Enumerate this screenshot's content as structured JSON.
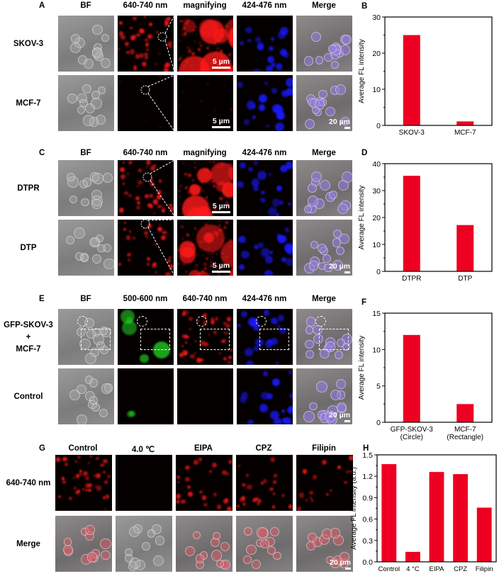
{
  "panels": {
    "A": {
      "letter": "A",
      "columns": [
        "BF",
        "640-740 nm",
        "magnifying",
        "424-476 nm",
        "Merge"
      ],
      "rows": [
        [
          "SKOV-3"
        ],
        [
          "MCF-7"
        ]
      ],
      "zoom_scale": "5 µm",
      "scale": "20 µm"
    },
    "C": {
      "letter": "C",
      "columns": [
        "BF",
        "640-740 nm",
        "magnifying",
        "424-476 nm",
        "Merge"
      ],
      "rows": [
        [
          "DTPR"
        ],
        [
          "DTP"
        ]
      ],
      "zoom_scale": "5 µm",
      "scale": "20 µm"
    },
    "E": {
      "letter": "E",
      "columns": [
        "BF",
        "500-600 nm",
        "640-740 nm",
        "424-476 nm",
        "Merge"
      ],
      "rows": [
        [
          "GFP-SKOV-3",
          "+",
          "MCF-7"
        ],
        [
          "Control"
        ]
      ],
      "scale": "20 µm"
    },
    "G": {
      "letter": "G",
      "columns": [
        "Control",
        "4.0 ℃",
        "EIPA",
        "CPZ",
        "Filipin"
      ],
      "rows": [
        [
          "640-740 nm"
        ],
        [
          "Merge"
        ]
      ],
      "scale": "20 µm"
    }
  },
  "colors": {
    "bar": "#ee0022",
    "red_channel": "#ff1a1a",
    "blue_channel": "#1a1aff",
    "green_channel": "#22cc22"
  },
  "chart_data": [
    {
      "panel": "B",
      "type": "bar",
      "categories": [
        [
          "SKOV-3"
        ],
        [
          "MCF-7"
        ]
      ],
      "values": [
        25,
        1.1
      ],
      "ylabel": "Average FL intensity",
      "ylim": [
        0,
        30
      ],
      "yticks": [
        "0",
        "10",
        "20",
        "30"
      ],
      "grid": false
    },
    {
      "panel": "D",
      "type": "bar",
      "categories": [
        [
          "DTPR"
        ],
        [
          "DTP"
        ]
      ],
      "values": [
        35.5,
        17.2
      ],
      "ylabel": "Average FL intensity",
      "ylim": [
        0,
        40
      ],
      "yticks": [
        "0",
        "10",
        "20",
        "30",
        "40"
      ],
      "grid": false
    },
    {
      "panel": "F",
      "type": "bar",
      "categories": [
        [
          "GFP-SKOV-3",
          "(Circle)"
        ],
        [
          "MCF-7",
          "(Rectangle)"
        ]
      ],
      "values": [
        12,
        2.5
      ],
      "ylabel": "Average FL intensity",
      "ylim": [
        0,
        15
      ],
      "yticks": [
        "0",
        "5",
        "10",
        "15"
      ],
      "grid": false
    },
    {
      "panel": "H",
      "type": "bar",
      "categories": [
        [
          "Control"
        ],
        [
          "4 °C"
        ],
        [
          "EIPA"
        ],
        [
          "CPZ"
        ],
        [
          "Filipin"
        ]
      ],
      "values": [
        1.37,
        0.14,
        1.26,
        1.23,
        0.76
      ],
      "ylabel": "Average FL intensity (a.u.)",
      "ylim": [
        0,
        1.5
      ],
      "yticks": [
        "0.0",
        "0.3",
        "0.6",
        "0.9",
        "1.2",
        "1.5"
      ],
      "grid": false
    }
  ]
}
